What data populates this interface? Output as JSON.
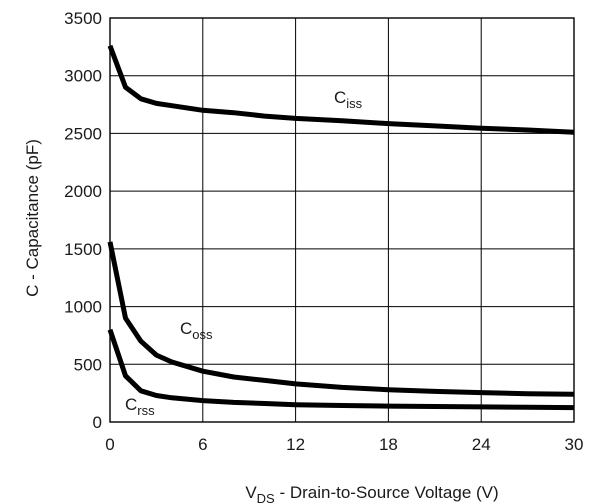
{
  "chart_data": {
    "type": "line",
    "xlabel": {
      "main": "V",
      "sub": "DS",
      "rest": " - Drain-to-Source Voltage (V)"
    },
    "ylabel": "C - Capacitance (pF)",
    "xlim": [
      0,
      30
    ],
    "ylim": [
      0,
      3500
    ],
    "xticks": [
      0,
      6,
      12,
      18,
      24,
      30
    ],
    "yticks": [
      0,
      500,
      1000,
      1500,
      2000,
      2500,
      3000,
      3500
    ],
    "grid": true,
    "series": [
      {
        "name": "Ciss",
        "label": {
          "main": "C",
          "sub": "iss"
        },
        "x": [
          0,
          1,
          2,
          3,
          4,
          6,
          8,
          10,
          12,
          15,
          18,
          21,
          24,
          27,
          30
        ],
        "y": [
          3260,
          2900,
          2800,
          2760,
          2740,
          2700,
          2680,
          2650,
          2630,
          2610,
          2585,
          2565,
          2545,
          2530,
          2510
        ]
      },
      {
        "name": "Coss",
        "label": {
          "main": "C",
          "sub": "oss"
        },
        "x": [
          0,
          1,
          2,
          3,
          4,
          6,
          8,
          10,
          12,
          15,
          18,
          21,
          24,
          27,
          30
        ],
        "y": [
          1560,
          900,
          700,
          580,
          520,
          440,
          390,
          360,
          330,
          300,
          280,
          265,
          255,
          245,
          240
        ]
      },
      {
        "name": "Crss",
        "label": {
          "main": "C",
          "sub": "rss"
        },
        "x": [
          0,
          1,
          2,
          3,
          4,
          6,
          8,
          10,
          12,
          15,
          18,
          21,
          24,
          27,
          30
        ],
        "y": [
          800,
          400,
          270,
          230,
          210,
          185,
          170,
          160,
          150,
          143,
          138,
          134,
          131,
          128,
          125
        ]
      }
    ]
  }
}
